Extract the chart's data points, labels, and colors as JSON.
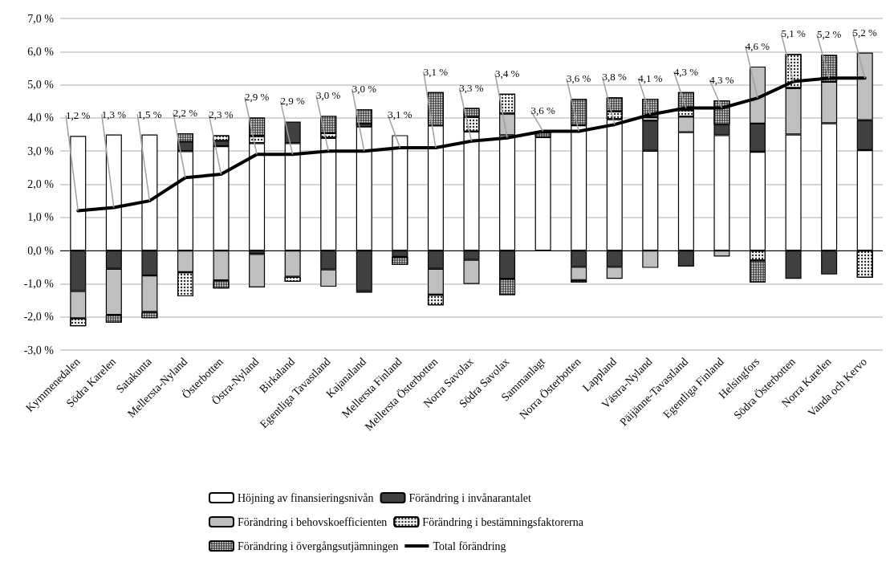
{
  "chart_data": {
    "type": "bar",
    "stacked": true,
    "categories": [
      "Kymmenedalen",
      "Södra Karelen",
      "Satakunta",
      "Mellersta-Nyland",
      "Österbotten",
      "Östra-Nyland",
      "Birkaland",
      "Egentliga Tavastland",
      "Kajanaland",
      "Mellersta Finland",
      "Mellersta Österbotten",
      "Norra Savolax",
      "Södra Savolax",
      "Sammanlagt",
      "Norra Österbotten",
      "Lappland",
      "Västra-Nyland",
      "Päijänne-Tavastland",
      "Egentliga Finland",
      "Helsingfors",
      "Södra Österbotten",
      "Norra Karelen",
      "Vanda och Kervo"
    ],
    "series": [
      {
        "name": "Höjning av finansieringsnivån",
        "color": "#ffffff",
        "values": [
          3.46,
          3.5,
          3.5,
          3.0,
          3.15,
          3.24,
          3.24,
          3.4,
          3.74,
          3.48,
          3.77,
          3.59,
          3.48,
          3.42,
          3.78,
          3.96,
          3.01,
          3.57,
          3.48,
          2.98,
          3.5,
          3.84,
          3.03
        ]
      },
      {
        "name": "Förändring i invånarantalet",
        "color": "#404040",
        "values": [
          -1.22,
          -0.55,
          -0.75,
          0.28,
          0.16,
          -0.1,
          0.65,
          -0.57,
          -1.22,
          -0.19,
          -0.55,
          -0.28,
          -0.85,
          null,
          -0.49,
          -0.49,
          0.91,
          -0.48,
          0.32,
          0.85,
          -0.85,
          -0.72,
          0.9
        ]
      },
      {
        "name": "Förändring i behovskoefficienten",
        "color": "#bfbfbf",
        "values": [
          -0.82,
          -1.39,
          -1.1,
          -0.65,
          -0.9,
          -1.01,
          -0.79,
          -0.52,
          -0.05,
          null,
          -0.78,
          -0.73,
          0.65,
          null,
          -0.4,
          -0.36,
          -0.52,
          0.47,
          -0.18,
          1.72,
          1.4,
          1.25,
          2.04
        ]
      },
      {
        "name": "Förändring i bestämningsfaktorerna",
        "color": "#f2f2f2",
        "values": [
          -0.24,
          null,
          null,
          -0.73,
          0.17,
          0.22,
          -0.15,
          0.14,
          0.08,
          null,
          -0.32,
          0.44,
          0.6,
          null,
          -0.07,
          0.24,
          0.1,
          0.2,
          null,
          -0.3,
          1.03,
          null,
          -0.82
        ]
      },
      {
        "name": "Förändring i övergångsutjämningen",
        "color": "#262626",
        "values": [
          null,
          -0.23,
          -0.19,
          0.26,
          -0.24,
          0.55,
          null,
          0.52,
          0.44,
          -0.24,
          1.01,
          0.27,
          -0.49,
          0.14,
          0.79,
          0.42,
          0.56,
          0.54,
          0.73,
          -0.66,
          null,
          0.81,
          null
        ]
      },
      {
        "name": "Total förändring",
        "type": "line",
        "color": "#000000",
        "values": [
          1.2,
          1.3,
          1.5,
          2.2,
          2.3,
          2.9,
          2.9,
          3.0,
          3.0,
          3.1,
          3.1,
          3.3,
          3.4,
          3.6,
          3.6,
          3.8,
          4.1,
          4.3,
          4.3,
          4.6,
          5.1,
          5.2,
          5.2
        ],
        "value_labels": [
          "1,2 %",
          "1,3 %",
          "1,5 %",
          "2,2 %",
          "2,3 %",
          "2,9 %",
          "2,9 %",
          "3,0 %",
          "3,0 %",
          "3,1 %",
          "3,1 %",
          "3,3 %",
          "3,4 %",
          "3,6 %",
          "3,6 %",
          "3,8 %",
          "4,1 %",
          "4,3 %",
          "4,3 %",
          "4,6 %",
          "5,1 %",
          "5,2 %",
          "5,2 %"
        ]
      }
    ],
    "ylim": [
      -3,
      7
    ],
    "yticks": [
      {
        "value": -3,
        "label": "-3,0 %"
      },
      {
        "value": -2,
        "label": "-2,0 %"
      },
      {
        "value": -1,
        "label": "-1,0 %"
      },
      {
        "value": 0,
        "label": "0,0 %"
      },
      {
        "value": 1,
        "label": "1,0 %"
      },
      {
        "value": 2,
        "label": "2,0 %"
      },
      {
        "value": 3,
        "label": "3,0 %"
      },
      {
        "value": 4,
        "label": "4,0 %"
      },
      {
        "value": 5,
        "label": "5,0 %"
      },
      {
        "value": 6,
        "label": "6,0 %"
      },
      {
        "value": 7,
        "label": "7,0 %"
      }
    ],
    "grid": "y",
    "legend": "bottom",
    "marker": "none",
    "line_style": "solid"
  }
}
